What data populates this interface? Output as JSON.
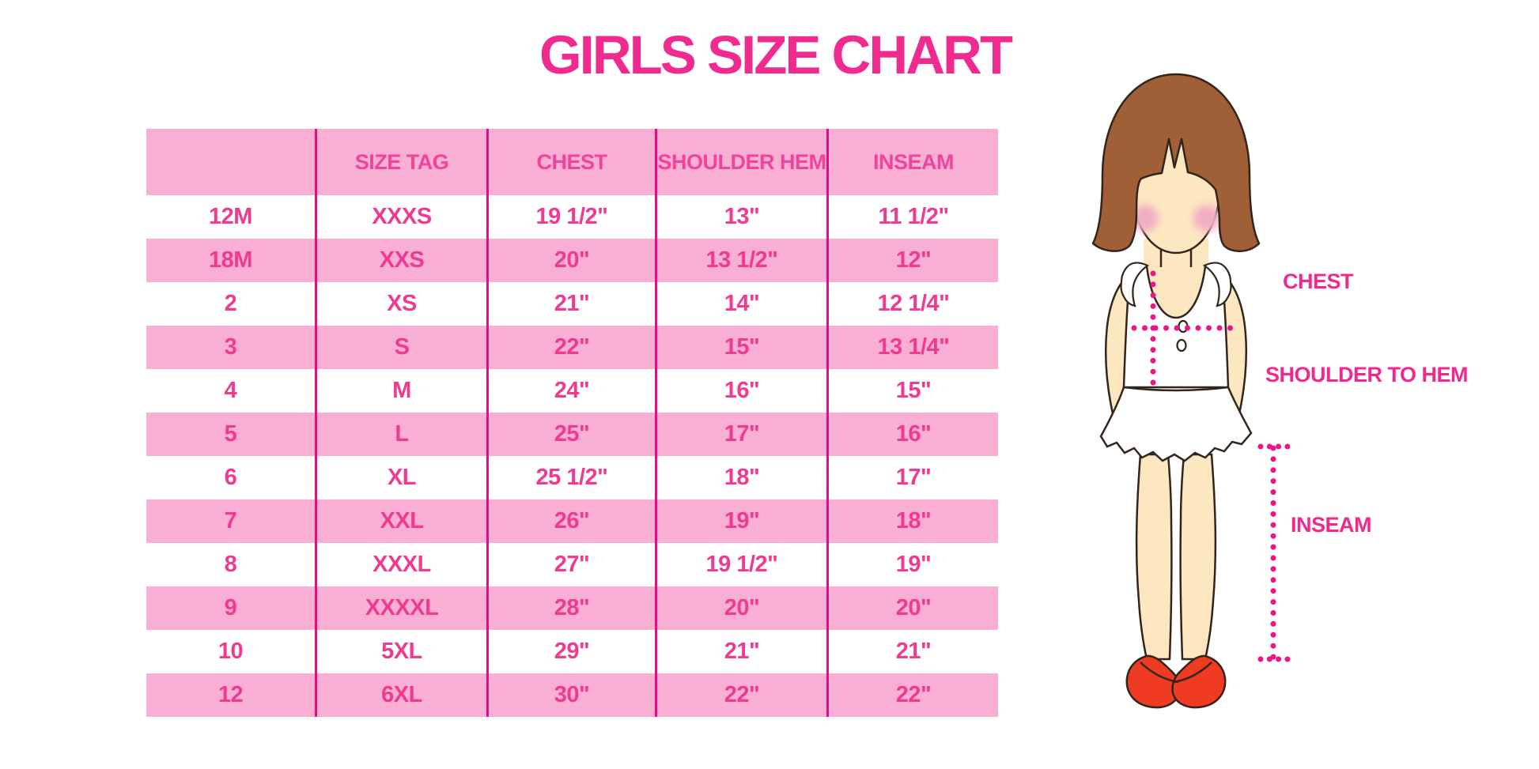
{
  "title": "GIRLS SIZE CHART",
  "colors": {
    "title_pink": "#F02B90",
    "row_pink": "#F9AED3",
    "divider_pink": "#E40D85",
    "table_text_pink": "#F03A92",
    "dot_pink": "#EC1487",
    "hair_brown": "#A15F37",
    "skin": "#FCE7C0",
    "blush": "#F2AEC2",
    "shoe_red": "#EF3B21"
  },
  "chart_data": {
    "type": "table",
    "title": "GIRLS SIZE CHART",
    "columns": [
      "",
      "SIZE TAG",
      "CHEST",
      "SHOULDER HEM",
      "INSEAM"
    ],
    "rows": [
      [
        "12M",
        "XXXS",
        "19 1/2\"",
        "13\"",
        "11 1/2\""
      ],
      [
        "18M",
        "XXS",
        "20\"",
        "13 1/2\"",
        "12\""
      ],
      [
        "2",
        "XS",
        "21\"",
        "14\"",
        "12 1/4\""
      ],
      [
        "3",
        "S",
        "22\"",
        "15\"",
        "13 1/4\""
      ],
      [
        "4",
        "M",
        "24\"",
        "16\"",
        "15\""
      ],
      [
        "5",
        "L",
        "25\"",
        "17\"",
        "16\""
      ],
      [
        "6",
        "XL",
        "25 1/2\"",
        "18\"",
        "17\""
      ],
      [
        "7",
        "XXL",
        "26\"",
        "19\"",
        "18\""
      ],
      [
        "8",
        "XXXL",
        "27\"",
        "19 1/2\"",
        "19\""
      ],
      [
        "9",
        "XXXXL",
        "28\"",
        "20\"",
        "20\""
      ],
      [
        "10",
        "5XL",
        "29\"",
        "21\"",
        "21\""
      ],
      [
        "12",
        "6XL",
        "30\"",
        "22\"",
        "22\""
      ]
    ]
  },
  "figure": {
    "chest_label": "CHEST",
    "shoulder_to_hem_label": "SHOULDER TO HEM",
    "inseam_label": "INSEAM"
  }
}
